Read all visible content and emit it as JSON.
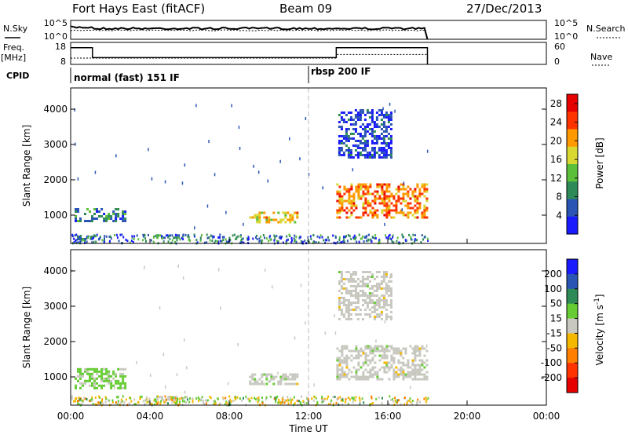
{
  "header": {
    "station": "Fort Hays East (fitACF)",
    "beam": "Beam 09",
    "date": "27/Dec/2013"
  },
  "side_labels": {
    "nsky": "N.Sky",
    "freq": "Freq.",
    "freq_unit": "[MHz]",
    "cpid": "CPID",
    "nsearch": "N.Search",
    "nave": "Nave"
  },
  "noise_panel": {
    "ytick_top": "10^5",
    "ytick_bottom": "10^0",
    "right_tick_top": "10^5",
    "right_tick_bottom": "10^0"
  },
  "freq_panel": {
    "left_ticks": [
      "18",
      "8"
    ],
    "right_ticks": [
      "60",
      "0"
    ],
    "freq_steps": [
      {
        "t0": 0.0,
        "t1": 1.1,
        "mhz": 16.6
      },
      {
        "t0": 1.1,
        "t1": 13.4,
        "mhz": 10.3
      },
      {
        "t0": 13.4,
        "t1": 18.0,
        "mhz": 16.6
      }
    ],
    "nave_steps": [
      {
        "t0": 0.0,
        "t1": 13.4,
        "nave": 12
      },
      {
        "t0": 13.4,
        "t1": 18.0,
        "nave": 26
      }
    ]
  },
  "cpid": {
    "segments": [
      "normal (fast) 151 IF",
      "rbsp 200 IF"
    ],
    "boundary_hour": 12.0
  },
  "chart_data": [
    {
      "type": "heatmap",
      "title": "",
      "xlabel": "",
      "ylabel": "Slant Range [km]",
      "xlim_hours": [
        0,
        24
      ],
      "ylim_km": [
        200,
        4600
      ],
      "yticks": [
        "1000",
        "2000",
        "3000",
        "4000"
      ],
      "colorbar": {
        "label": "Power [dB]",
        "ticks": [
          "4",
          "8",
          "12",
          "16",
          "20",
          "24",
          "28"
        ],
        "range": [
          0,
          30
        ],
        "colors": [
          "#1a1aff",
          "#2b55b4",
          "#2e8b57",
          "#5bbf3a",
          "#d8d830",
          "#ff9900",
          "#ff3300",
          "#e60000"
        ]
      },
      "echo_regions": [
        {
          "t0": 0.2,
          "t1": 2.7,
          "r0": 800,
          "r1": 1200,
          "power_db": 8
        },
        {
          "t0": 0.2,
          "t1": 1.2,
          "r0": 320,
          "r1": 420,
          "power_db": 6
        },
        {
          "t0": 4.2,
          "t1": 5.4,
          "r0": 330,
          "r1": 460,
          "power_db": 8
        },
        {
          "t0": 9.0,
          "t1": 11.4,
          "r0": 780,
          "r1": 1100,
          "power_db": 18
        },
        {
          "t0": 13.4,
          "t1": 18.0,
          "r0": 900,
          "r1": 1900,
          "power_db": 22
        },
        {
          "t0": 13.5,
          "t1": 16.2,
          "r0": 2600,
          "r1": 4000,
          "power_db": 4
        }
      ]
    },
    {
      "type": "heatmap",
      "title": "",
      "xlabel": "Time UT",
      "ylabel": "Slant Range [km]",
      "xlim_hours": [
        0,
        24
      ],
      "ylim_km": [
        200,
        4600
      ],
      "xticks": [
        "00:00",
        "04:00",
        "08:00",
        "12:00",
        "16:00",
        "20:00",
        "00:00"
      ],
      "yticks": [
        "1000",
        "2000",
        "3000",
        "4000"
      ],
      "colorbar": {
        "label": "Velocity [m s^-1]",
        "ticks": [
          "200",
          "100",
          "50",
          "15",
          "-15",
          "-50",
          "-100",
          "-200"
        ],
        "range": [
          -250,
          250
        ],
        "colors": [
          "#1a1aff",
          "#2b55b4",
          "#2e8b57",
          "#66cc33",
          "#c8c8c0",
          "#f5b800",
          "#ff8000",
          "#ff3300",
          "#e60000"
        ]
      },
      "echo_regions": [
        {
          "t0": 0.2,
          "t1": 2.7,
          "r0": 700,
          "r1": 1250,
          "velocity": 40
        },
        {
          "t0": 0.2,
          "t1": 1.2,
          "r0": 320,
          "r1": 420,
          "velocity": -80
        },
        {
          "t0": 4.2,
          "t1": 5.4,
          "r0": 330,
          "r1": 460,
          "velocity": 0
        },
        {
          "t0": 9.0,
          "t1": 11.4,
          "r0": 780,
          "r1": 1100,
          "velocity": 0
        },
        {
          "t0": 13.4,
          "t1": 18.0,
          "r0": 900,
          "r1": 1900,
          "velocity": 0
        },
        {
          "t0": 13.5,
          "t1": 16.2,
          "r0": 2600,
          "r1": 4000,
          "velocity": 0
        }
      ]
    }
  ]
}
